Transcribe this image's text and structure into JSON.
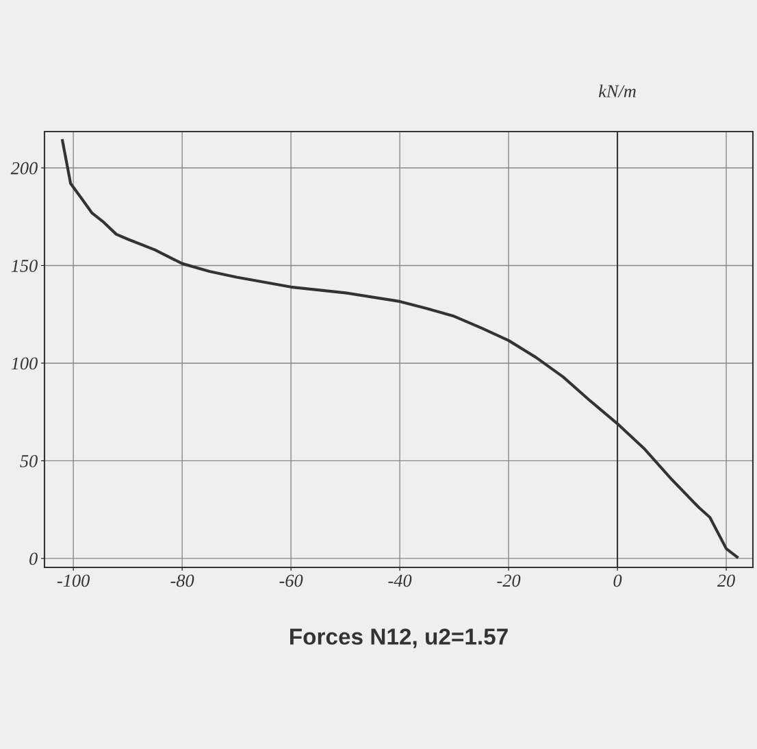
{
  "chart_data": {
    "type": "line",
    "title": "Forces N12, u2=1.57",
    "ylabel": "kN/m",
    "x": [
      -102,
      -100.5,
      -98.4,
      -96.6,
      -94.6,
      -92.1,
      -90,
      -85,
      -80,
      -75,
      -70,
      -60,
      -50,
      -40,
      -35,
      -30,
      -25,
      -20,
      -15,
      -10,
      -5,
      0,
      5,
      10,
      15,
      17,
      20,
      22
    ],
    "series": [
      {
        "color": "#333333",
        "values": [
          214,
          192,
          184,
          177,
          172.6,
          166,
          163.5,
          158,
          151,
          147,
          144,
          139,
          136,
          131.6,
          128,
          124,
          118,
          111.6,
          103,
          93,
          80.7,
          69,
          56,
          40.4,
          26,
          21,
          5,
          0.7
        ]
      }
    ],
    "xlim": [
      -105.3,
      24.9
    ],
    "ylim": [
      -4.6,
      218.6
    ],
    "xticks": [
      -100,
      -80,
      -60,
      -40,
      -20,
      0,
      20
    ],
    "yticks": [
      0,
      50,
      100,
      150,
      200
    ],
    "ref_lines": [
      {
        "axis": "x",
        "value": 0,
        "color": "#333333"
      }
    ],
    "grid": true,
    "marker": "none",
    "line_style": "solid",
    "legend": false
  }
}
